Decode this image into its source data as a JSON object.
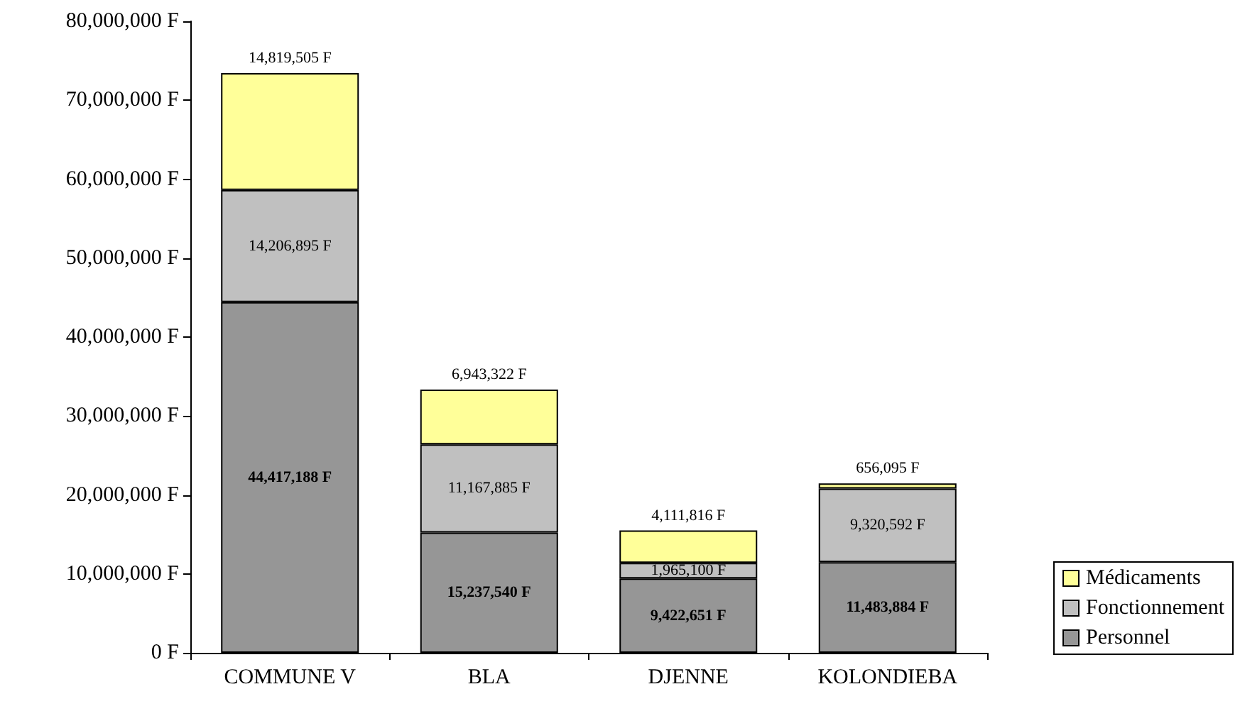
{
  "chart_data": {
    "type": "bar",
    "stacked": true,
    "categories": [
      "COMMUNE V",
      "BLA",
      "DJENNE",
      "KOLONDIEBA"
    ],
    "series": [
      {
        "name": "Personnel",
        "color": "#969696",
        "values": [
          44417188,
          15237540,
          9422651,
          11483884
        ],
        "value_labels": [
          "44,417,188 F",
          "15,237,540 F",
          "9,422,651 F",
          "11,483,884 F"
        ]
      },
      {
        "name": "Fonctionnement",
        "color": "#c0c0c0",
        "values": [
          14206895,
          11167885,
          1965100,
          9320592
        ],
        "value_labels": [
          "14,206,895 F",
          "11,167,885 F",
          "1,965,100 F",
          "9,320,592 F"
        ]
      },
      {
        "name": "Médicaments",
        "color": "#ffff99",
        "values": [
          14819505,
          6943322,
          4111816,
          656095
        ],
        "value_labels": [
          "14,819,505 F",
          "6,943,322 F",
          "4,111,816 F",
          "656,095 F"
        ]
      }
    ],
    "ylim": [
      0,
      80000000
    ],
    "yticks": [
      {
        "value": 0,
        "label": "0 F"
      },
      {
        "value": 10000000,
        "label": "10,000,000 F"
      },
      {
        "value": 20000000,
        "label": "20,000,000 F"
      },
      {
        "value": 30000000,
        "label": "30,000,000 F"
      },
      {
        "value": 40000000,
        "label": "40,000,000 F"
      },
      {
        "value": 50000000,
        "label": "50,000,000 F"
      },
      {
        "value": 60000000,
        "label": "60,000,000 F"
      },
      {
        "value": 70000000,
        "label": "70,000,000 F"
      },
      {
        "value": 80000000,
        "label": "80,000,000 F"
      }
    ],
    "grid": false,
    "legend": "bottom right"
  }
}
